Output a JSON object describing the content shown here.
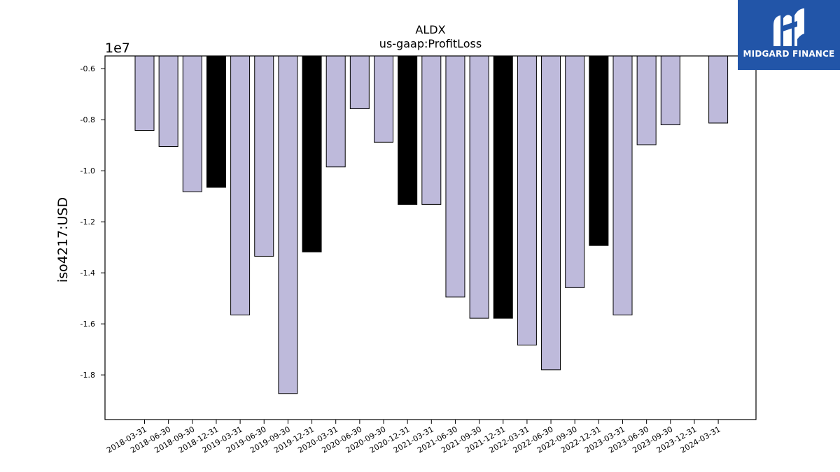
{
  "brand": {
    "name": "MIDGARD FINANCE",
    "bg_color": "#2255a8",
    "mark_icon": "stylized-m-logo-icon"
  },
  "chart_data": {
    "type": "bar",
    "title": "ALDX",
    "subtitle": "us-gaap:ProfitLoss",
    "ylabel": "iso4217:USD",
    "xlabel": "",
    "y_scale_label": "1e7",
    "ylim": [
      -1.975,
      -0.55
    ],
    "yticks": [
      "-0.6",
      "-0.8",
      "-1.0",
      "-1.2",
      "-1.4",
      "-1.6",
      "-1.8"
    ],
    "ytick_values": [
      -0.6,
      -0.8,
      -1.0,
      -1.2,
      -1.4,
      -1.6,
      -1.8
    ],
    "categories": [
      "2018-03-31",
      "2018-06-30",
      "2018-09-30",
      "2018-12-31",
      "2019-03-31",
      "2019-06-30",
      "2019-09-30",
      "2019-12-31",
      "2020-03-31",
      "2020-06-30",
      "2020-09-30",
      "2020-12-31",
      "2021-03-31",
      "2021-06-30",
      "2021-09-30",
      "2021-12-31",
      "2022-03-31",
      "2022-06-30",
      "2022-09-30",
      "2022-12-31",
      "2023-03-31",
      "2023-06-30",
      "2023-09-30",
      "2023-12-31",
      "2024-03-31"
    ],
    "values": [
      -0.842,
      -0.905,
      -1.082,
      -1.065,
      -1.565,
      -1.335,
      -1.873,
      -1.318,
      -0.985,
      -0.757,
      -0.888,
      -1.132,
      -1.132,
      -1.495,
      -1.578,
      -1.578,
      -1.683,
      -1.78,
      -1.458,
      -1.293,
      -1.565,
      -0.898,
      -0.82,
      null,
      -0.813
    ],
    "bar_colors": [
      "#bebadb",
      "#bebadb",
      "#bebadb",
      "#000000",
      "#bebadb",
      "#bebadb",
      "#bebadb",
      "#000000",
      "#bebadb",
      "#bebadb",
      "#bebadb",
      "#000000",
      "#bebadb",
      "#bebadb",
      "#bebadb",
      "#000000",
      "#bebadb",
      "#bebadb",
      "#bebadb",
      "#000000",
      "#bebadb",
      "#bebadb",
      "#bebadb",
      "#bebadb",
      "#bebadb"
    ],
    "colors": {
      "regular": "#bebadb",
      "highlight": "#000000",
      "edge": "#000000"
    },
    "grid": false,
    "legend": "none"
  }
}
